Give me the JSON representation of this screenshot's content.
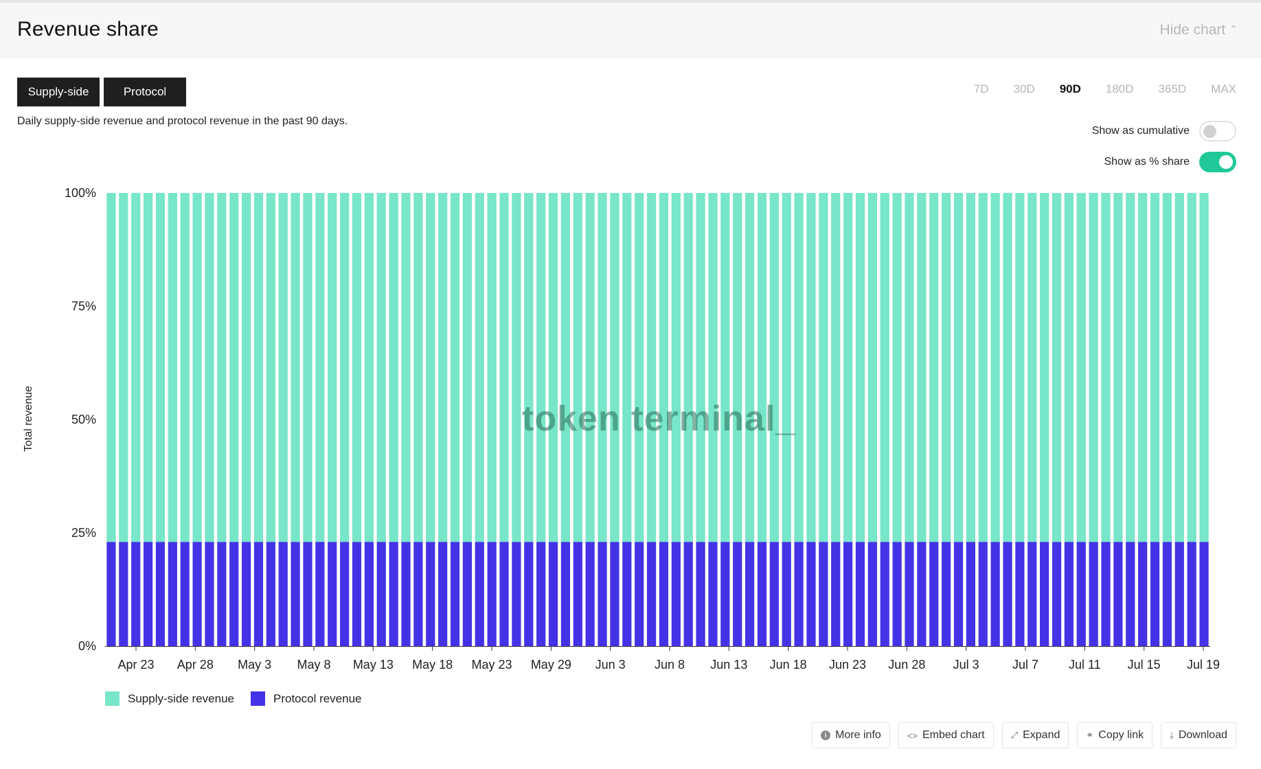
{
  "header": {
    "title": "Revenue share",
    "hide_chart_label": "Hide chart",
    "hide_chart_icon": "chevron-up-icon"
  },
  "tabs": [
    {
      "label": "Supply-side",
      "active": true
    },
    {
      "label": "Protocol",
      "active": true
    }
  ],
  "description": "Daily supply-side revenue and protocol revenue in the past 90 days.",
  "ranges": [
    "7D",
    "30D",
    "90D",
    "180D",
    "365D",
    "MAX"
  ],
  "active_range": "90D",
  "toggles": {
    "cumulative": {
      "label": "Show as cumulative",
      "on": false
    },
    "share": {
      "label": "Show as % share",
      "on": true
    }
  },
  "watermark": "token terminal_",
  "colors": {
    "supply": "#78e6c8",
    "protocol": "#4433e6",
    "toggle_on": "#20c997"
  },
  "chart_data": {
    "type": "bar",
    "stacked": true,
    "ylabel": "Total revenue",
    "ylim": [
      0,
      100
    ],
    "yticks": [
      "0%",
      "25%",
      "50%",
      "75%",
      "100%"
    ],
    "xticks": [
      "Apr 23",
      "Apr 28",
      "May 3",
      "May 8",
      "May 13",
      "May 18",
      "May 23",
      "May 29",
      "Jun 3",
      "Jun 8",
      "Jun 13",
      "Jun 18",
      "Jun 23",
      "Jun 28",
      "Jul 3",
      "Jul 7",
      "Jul 11",
      "Jul 15",
      "Jul 19"
    ],
    "num_bars": 90,
    "series": [
      {
        "name": "Supply-side revenue",
        "color": "#78e6c8",
        "constant_value": 77
      },
      {
        "name": "Protocol revenue",
        "color": "#4433e6",
        "constant_value": 23
      }
    ]
  },
  "legend": [
    {
      "label": "Supply-side revenue",
      "color": "#78e6c8"
    },
    {
      "label": "Protocol revenue",
      "color": "#4433e6"
    }
  ],
  "actions": [
    {
      "label": "More info",
      "icon": "info-icon"
    },
    {
      "label": "Embed chart",
      "icon": "code-icon"
    },
    {
      "label": "Expand",
      "icon": "expand-icon"
    },
    {
      "label": "Copy link",
      "icon": "link-icon"
    },
    {
      "label": "Download",
      "icon": "download-icon"
    }
  ]
}
